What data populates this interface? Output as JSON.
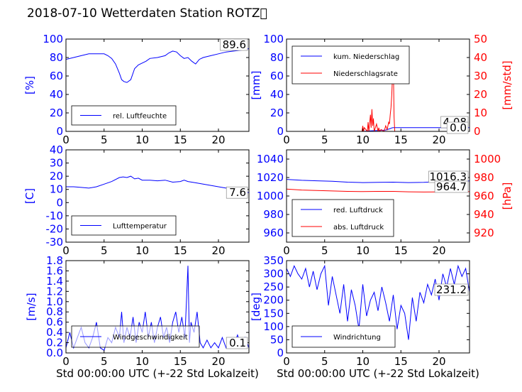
{
  "page": {
    "title": "2018-07-10 Wetterdaten Station ROTZ\u0000"
  },
  "chart_data": [
    {
      "id": "humidity",
      "type": "line",
      "ylabel": "[%]",
      "xlim": [
        0,
        24
      ],
      "xticks": [
        0,
        5,
        10,
        15,
        20
      ],
      "ylim": [
        0,
        100
      ],
      "yticks": [
        0,
        20,
        40,
        60,
        80,
        100
      ],
      "legend_placement": "lower-left",
      "last_value_label": "89.6",
      "series": [
        {
          "name": "rel. Luftfeuchte",
          "color": "#0000ff",
          "axis": "left",
          "x": [
            0,
            1,
            2,
            3,
            4,
            5,
            5.5,
            6,
            6.5,
            7,
            7.3,
            7.6,
            8,
            8.5,
            9,
            9.5,
            10,
            10.5,
            11,
            12,
            13,
            13.5,
            14,
            14.5,
            15,
            15.5,
            16,
            16.5,
            17,
            17.5,
            18,
            19,
            20,
            21,
            22,
            23,
            24
          ],
          "y": [
            78,
            80,
            82,
            84,
            84,
            84,
            82,
            79,
            73,
            63,
            56,
            54,
            53,
            56,
            68,
            72,
            74,
            76,
            79,
            80,
            82,
            85,
            87,
            86,
            82,
            79,
            80,
            76,
            73,
            78,
            80,
            82,
            84,
            86,
            87,
            88,
            89.6
          ]
        }
      ]
    },
    {
      "id": "precipitation",
      "type": "line",
      "ylabel": "[mm]",
      "ylabel_right": "[mm/std]",
      "xlim": [
        0,
        24
      ],
      "xticks": [
        0,
        5,
        10,
        15,
        20
      ],
      "ylim": [
        0,
        100
      ],
      "yticks": [
        0,
        20,
        40,
        60,
        80,
        100
      ],
      "ylim_right": [
        0,
        50
      ],
      "yticks_right": [
        0,
        10,
        20,
        30,
        40,
        50
      ],
      "legend_placement": "top-left",
      "last_value_labels": [
        "4.08",
        "0.0"
      ],
      "series": [
        {
          "name": "kum. Niederschlag",
          "color": "#0000ff",
          "axis": "left",
          "x": [
            0,
            10,
            10.5,
            11,
            12,
            13,
            13.6,
            13.8,
            14,
            24
          ],
          "y": [
            0,
            0,
            0.3,
            0.6,
            1.0,
            1.5,
            3.0,
            3.8,
            4.08,
            4.08
          ]
        },
        {
          "name": "Niederschlagsrate",
          "color": "#ff0000",
          "axis": "right",
          "x": [
            0,
            9.9,
            10.0,
            10.1,
            10.2,
            10.6,
            10.7,
            10.8,
            11.0,
            11.1,
            11.2,
            11.3,
            11.4,
            11.5,
            11.8,
            12.0,
            12.1,
            12.2,
            12.4,
            12.8,
            13.0,
            13.2,
            13.4,
            13.5,
            13.6,
            13.7,
            13.8,
            13.9,
            14.0,
            14.1,
            14.2,
            24
          ],
          "y": [
            0,
            0,
            3,
            0,
            2,
            0,
            5,
            0,
            9,
            2,
            12,
            3,
            7,
            0,
            4,
            0,
            2,
            0,
            1,
            0,
            3,
            1,
            5,
            4,
            9,
            13,
            20,
            30,
            39,
            8,
            0,
            0
          ]
        }
      ]
    },
    {
      "id": "temperature",
      "type": "line",
      "ylabel": "[C]",
      "xlim": [
        0,
        24
      ],
      "xticks": [
        0,
        5,
        10,
        15,
        20
      ],
      "ylim": [
        -30,
        40
      ],
      "yticks": [
        -30,
        -20,
        -10,
        0,
        10,
        20,
        30,
        40
      ],
      "legend_placement": "lower-left",
      "last_value_label": "7.6",
      "series": [
        {
          "name": "Lufttemperatur",
          "color": "#0000ff",
          "axis": "left",
          "x": [
            0,
            1,
            2,
            3,
            4,
            5,
            6,
            7,
            7.5,
            8,
            8.5,
            9,
            9.5,
            10,
            11,
            12,
            13,
            14,
            15,
            15.5,
            16,
            17,
            18,
            19,
            20,
            21,
            22,
            23,
            24
          ],
          "y": [
            12,
            12,
            11.5,
            11,
            12,
            14,
            16,
            19,
            19.5,
            19,
            20,
            18,
            18.5,
            17,
            17,
            16.5,
            17,
            15.5,
            16,
            17,
            16,
            15,
            14,
            13,
            12,
            11,
            10,
            8.5,
            7.6
          ]
        }
      ]
    },
    {
      "id": "pressure",
      "type": "line",
      "ylabel_right": "[hPa]",
      "xlim": [
        0,
        24
      ],
      "xticks": [
        0,
        5,
        10,
        15,
        20
      ],
      "ylim": [
        950,
        1050
      ],
      "yticks": [
        960,
        980,
        1000,
        1020,
        1040
      ],
      "ylim_right": [
        910,
        1010
      ],
      "yticks_right": [
        920,
        940,
        960,
        980,
        1000
      ],
      "legend_placement": "lower-left",
      "last_value_labels": [
        "1016.3",
        "964.7"
      ],
      "series": [
        {
          "name": "red. Luftdruck",
          "color": "#0000ff",
          "axis": "left",
          "x": [
            0,
            2,
            4,
            6,
            8,
            10,
            12,
            14,
            16,
            18,
            20,
            22,
            24
          ],
          "y": [
            1018,
            1017,
            1016.5,
            1016,
            1015,
            1014.5,
            1014.8,
            1015,
            1014.5,
            1014.8,
            1015.5,
            1016,
            1016.3
          ]
        },
        {
          "name": "abs. Luftdruck",
          "color": "#ff0000",
          "axis": "right",
          "x": [
            0,
            2,
            4,
            6,
            8,
            10,
            12,
            14,
            16,
            18,
            20,
            22,
            24
          ],
          "y": [
            967.5,
            966.5,
            966,
            965.5,
            965,
            964.8,
            965,
            965,
            964.5,
            964.3,
            964.4,
            964.6,
            964.7
          ]
        }
      ]
    },
    {
      "id": "wind-speed",
      "type": "line",
      "ylabel": "[m/s]",
      "xlim": [
        0,
        24
      ],
      "xticks": [
        0,
        5,
        10,
        15,
        20
      ],
      "ylim": [
        0,
        1.8
      ],
      "yticks": [
        0.0,
        0.2,
        0.4,
        0.6,
        0.8,
        1.0,
        1.2,
        1.4,
        1.6,
        1.8
      ],
      "legend_placement": "lower-left",
      "last_value_label": "0.1",
      "series": [
        {
          "name": "Windgeschwindigkeit",
          "color": "#0000ff",
          "axis": "left",
          "x": [
            0,
            0.5,
            1,
            1.5,
            2,
            2.5,
            3,
            3.5,
            4,
            4.5,
            5,
            5.5,
            6,
            6.5,
            7,
            7.3,
            7.6,
            8,
            8.4,
            8.8,
            9.2,
            9.6,
            10,
            10.4,
            10.8,
            11.2,
            11.6,
            12,
            12.4,
            12.8,
            13.2,
            13.6,
            14,
            14.4,
            14.8,
            15.2,
            15.6,
            16,
            16.2,
            16.4,
            16.8,
            17.2,
            17.6,
            18,
            18.5,
            19,
            19.5,
            20,
            20.5,
            21,
            21.5,
            22,
            22.5,
            23,
            23.5,
            24
          ],
          "y": [
            0.1,
            0.4,
            0.1,
            0.3,
            0.5,
            0.2,
            0.1,
            0.3,
            0.6,
            0.1,
            0.05,
            0.3,
            0.2,
            0.5,
            0.3,
            0.8,
            0.2,
            0.5,
            0.3,
            0.7,
            0.2,
            0.6,
            0.4,
            0.8,
            0.3,
            0.6,
            0.2,
            0.5,
            0.7,
            0.3,
            0.5,
            0.2,
            0.6,
            0.8,
            0.4,
            0.7,
            0.3,
            1.7,
            0.2,
            0.6,
            0.4,
            0.8,
            0.2,
            0.1,
            0.25,
            0.1,
            0.2,
            0.1,
            0.3,
            0.1,
            0.25,
            0.15,
            0.35,
            0.1,
            0.3,
            0.1
          ]
        }
      ]
    },
    {
      "id": "wind-direction",
      "type": "line",
      "ylabel": "[deg]",
      "xlim": [
        0,
        24
      ],
      "xticks": [
        0,
        5,
        10,
        15,
        20
      ],
      "ylim": [
        0,
        350
      ],
      "yticks": [
        0,
        50,
        100,
        150,
        200,
        250,
        300,
        350
      ],
      "legend_placement": "lower-left",
      "last_value_label": "231.2",
      "series": [
        {
          "name": "Windrichtung",
          "color": "#0000ff",
          "axis": "left",
          "x": [
            0,
            0.5,
            1,
            1.5,
            2,
            2.5,
            3,
            3.5,
            4,
            4.5,
            5,
            5.5,
            6,
            6.5,
            7,
            7.5,
            8,
            8.5,
            9,
            9.5,
            10,
            10.5,
            11,
            11.5,
            12,
            12.5,
            13,
            13.5,
            14,
            14.5,
            15,
            15.5,
            16,
            16.5,
            17,
            17.5,
            18,
            18.5,
            19,
            19.5,
            20,
            20.5,
            21,
            21.5,
            22,
            22.5,
            23,
            23.5,
            24
          ],
          "y": [
            320,
            290,
            330,
            300,
            280,
            320,
            250,
            310,
            240,
            300,
            330,
            180,
            290,
            220,
            150,
            260,
            120,
            240,
            180,
            90,
            260,
            140,
            200,
            230,
            160,
            250,
            190,
            120,
            220,
            90,
            180,
            150,
            50,
            210,
            120,
            230,
            190,
            260,
            220,
            280,
            200,
            300,
            250,
            320,
            260,
            330,
            290,
            320,
            231.2
          ]
        }
      ]
    }
  ],
  "xlabel": "Std 00:00:00 UTC (+-22 Std Lokalzeit)"
}
